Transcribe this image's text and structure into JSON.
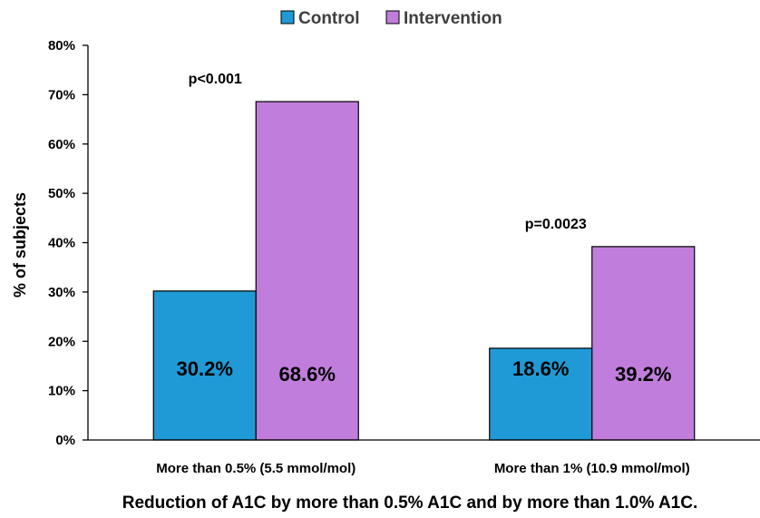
{
  "chart_data": {
    "type": "bar",
    "categories": [
      "More than 0.5% (5.5 mmol/mol)",
      "More than 1% (10.9 mmol/mol)"
    ],
    "series": [
      {
        "name": "Control",
        "values": [
          30.2,
          18.6
        ],
        "labels": [
          "30.2%",
          "18.6%"
        ],
        "color": "#1f9ad6"
      },
      {
        "name": "Intervention",
        "values": [
          68.6,
          39.2
        ],
        "labels": [
          "68.6%",
          "39.2%"
        ],
        "color": "#c07ddb"
      }
    ],
    "annotations": [
      "p<0.001",
      "p=0.0023"
    ],
    "title": "",
    "xlabel": "Reduction of A1C by more than 0.5% A1C and by more than 1.0% A1C.",
    "ylabel": "% of subjects",
    "ylim": [
      0,
      80
    ],
    "yticks": [
      "0%",
      "10%",
      "20%",
      "30%",
      "40%",
      "50%",
      "60%",
      "70%",
      "80%"
    ],
    "grid": false,
    "legend": "top-center"
  }
}
